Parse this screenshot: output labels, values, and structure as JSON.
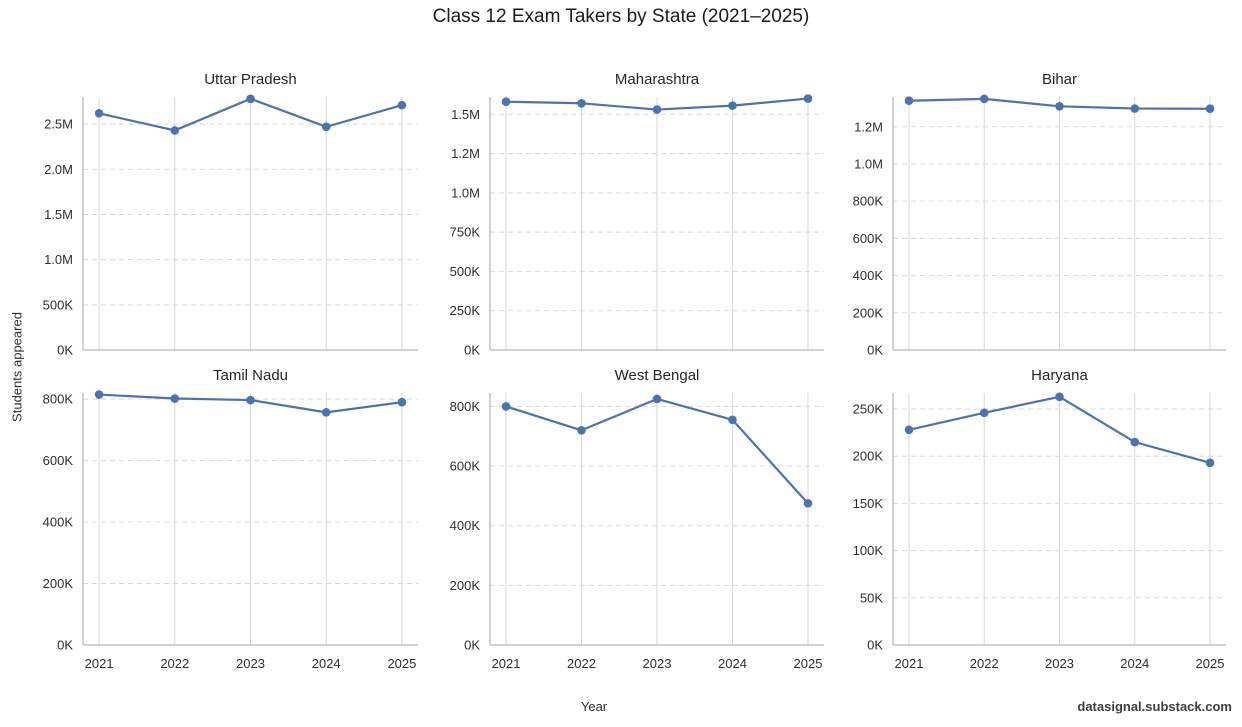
{
  "title": "Class 12 Exam Takers by State (2021–2025)",
  "xlabel": "Year",
  "ylabel": "Students appeared",
  "watermark": "datasignal.substack.com",
  "colors": {
    "line": "#4C72B0",
    "grid": "#d7d7d7",
    "spine": "#b9b9b9",
    "tick_text": "#2e2e2e"
  },
  "x_tick_labels": [
    "2021",
    "2022",
    "2023",
    "2024",
    "2025"
  ],
  "chart_data": [
    {
      "type": "line",
      "title": "Uttar Pradesh",
      "x": [
        2021,
        2022,
        2023,
        2024,
        2025
      ],
      "values": [
        2620000,
        2430000,
        2780000,
        2470000,
        2710000
      ],
      "ylim": [
        0,
        2800000
      ],
      "ytick_values": [
        0,
        500000,
        1000000,
        1500000,
        2000000,
        2500000
      ],
      "ytick_labels": [
        "0K",
        "500K",
        "1.0M",
        "1.5M",
        "2.0M",
        "2.5M"
      ]
    },
    {
      "type": "line",
      "title": "Maharashtra",
      "x": [
        2021,
        2022,
        2023,
        2024,
        2025
      ],
      "values": [
        1580000,
        1570000,
        1530000,
        1555000,
        1600000
      ],
      "ylim": [
        0,
        1610000
      ],
      "ytick_values": [
        0,
        250000,
        500000,
        750000,
        1000000,
        1250000,
        1500000
      ],
      "ytick_labels": [
        "0K",
        "250K",
        "500K",
        "750K",
        "1.0M",
        "1.2M",
        "1.5M"
      ]
    },
    {
      "type": "line",
      "title": "Bihar",
      "x": [
        2021,
        2022,
        2023,
        2024,
        2025
      ],
      "values": [
        1340000,
        1350000,
        1310000,
        1298000,
        1297000
      ],
      "ylim": [
        0,
        1360000
      ],
      "ytick_values": [
        0,
        200000,
        400000,
        600000,
        800000,
        1000000,
        1200000
      ],
      "ytick_labels": [
        "0K",
        "200K",
        "400K",
        "600K",
        "800K",
        "1.0M",
        "1.2M"
      ]
    },
    {
      "type": "line",
      "title": "Tamil Nadu",
      "x": [
        2021,
        2022,
        2023,
        2024,
        2025
      ],
      "values": [
        815000,
        802000,
        797000,
        757000,
        790000
      ],
      "ylim": [
        0,
        820000
      ],
      "ytick_values": [
        0,
        200000,
        400000,
        600000,
        800000
      ],
      "ytick_labels": [
        "0K",
        "200K",
        "400K",
        "600K",
        "800K"
      ]
    },
    {
      "type": "line",
      "title": "West Bengal",
      "x": [
        2021,
        2022,
        2023,
        2024,
        2025
      ],
      "values": [
        800000,
        720000,
        825000,
        755000,
        475000
      ],
      "ylim": [
        0,
        845000
      ],
      "ytick_values": [
        0,
        200000,
        400000,
        600000,
        800000
      ],
      "ytick_labels": [
        "0K",
        "200K",
        "400K",
        "600K",
        "800K"
      ]
    },
    {
      "type": "line",
      "title": "Haryana",
      "x": [
        2021,
        2022,
        2023,
        2024,
        2025
      ],
      "values": [
        228000,
        246000,
        263000,
        215000,
        193000
      ],
      "ylim": [
        0,
        267000
      ],
      "ytick_values": [
        0,
        50000,
        100000,
        150000,
        200000,
        250000
      ],
      "ytick_labels": [
        "0K",
        "50K",
        "100K",
        "150K",
        "200K",
        "250K"
      ]
    }
  ]
}
